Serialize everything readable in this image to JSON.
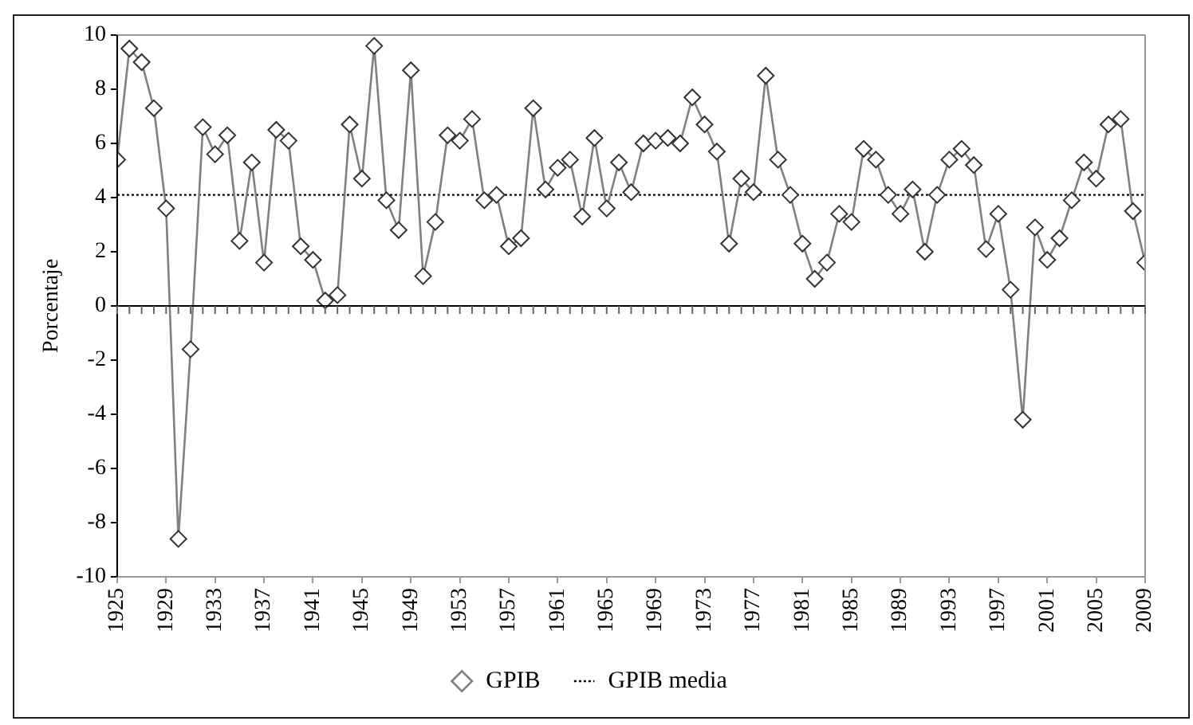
{
  "chart_data": {
    "type": "line",
    "ylabel": "Porcentaje",
    "xlim": [
      1925,
      2009
    ],
    "xticks": [
      1925,
      1929,
      1933,
      1937,
      1941,
      1945,
      1949,
      1953,
      1957,
      1961,
      1965,
      1969,
      1973,
      1977,
      1981,
      1985,
      1989,
      1993,
      1997,
      2001,
      2005,
      2009
    ],
    "ylim": [
      -10,
      10
    ],
    "yticks": [
      -10,
      -8,
      -6,
      -4,
      -2,
      0,
      2,
      4,
      6,
      8,
      10
    ],
    "grid": false,
    "legend": "bottom",
    "series": [
      {
        "name": "GPIB",
        "color": "#808080",
        "marker": "diamond",
        "line_style": "solid",
        "x": [
          1925,
          1926,
          1927,
          1928,
          1929,
          1930,
          1931,
          1932,
          1933,
          1934,
          1935,
          1936,
          1937,
          1938,
          1939,
          1940,
          1941,
          1942,
          1943,
          1944,
          1945,
          1946,
          1947,
          1948,
          1949,
          1950,
          1951,
          1952,
          1953,
          1954,
          1955,
          1956,
          1957,
          1958,
          1959,
          1960,
          1961,
          1962,
          1963,
          1964,
          1965,
          1966,
          1967,
          1968,
          1969,
          1970,
          1971,
          1972,
          1973,
          1974,
          1975,
          1976,
          1977,
          1978,
          1979,
          1980,
          1981,
          1982,
          1983,
          1984,
          1985,
          1986,
          1987,
          1988,
          1989,
          1990,
          1991,
          1992,
          1993,
          1994,
          1995,
          1996,
          1997,
          1998,
          1999,
          2000,
          2001,
          2002,
          2003,
          2004,
          2005,
          2006,
          2007,
          2008,
          2009
        ],
        "values": [
          5.4,
          9.5,
          9.0,
          7.3,
          3.6,
          -8.6,
          -1.6,
          6.6,
          5.6,
          6.3,
          2.4,
          5.3,
          1.6,
          6.5,
          6.1,
          2.2,
          1.7,
          0.2,
          0.4,
          6.7,
          4.7,
          9.6,
          3.9,
          2.8,
          8.7,
          1.1,
          3.1,
          6.3,
          6.1,
          6.9,
          3.9,
          4.1,
          2.2,
          2.5,
          7.3,
          4.3,
          5.1,
          5.4,
          3.3,
          6.2,
          3.6,
          5.3,
          4.2,
          6.0,
          6.1,
          6.2,
          6.0,
          7.7,
          6.7,
          5.7,
          2.3,
          4.7,
          4.2,
          8.5,
          5.4,
          4.1,
          2.3,
          1.0,
          1.6,
          3.4,
          3.1,
          5.8,
          5.4,
          4.1,
          3.4,
          4.3,
          2.0,
          4.1,
          5.4,
          5.8,
          5.2,
          2.1,
          3.4,
          0.6,
          -4.2,
          2.9,
          1.7,
          2.5,
          3.9,
          5.3,
          4.7,
          6.7,
          6.9,
          3.5,
          1.6
        ]
      },
      {
        "name": "GPIB media",
        "color": "#000000",
        "marker": "none",
        "line_style": "dotted",
        "x": [
          1925,
          2009
        ],
        "values": [
          4.1,
          4.1
        ]
      }
    ]
  }
}
